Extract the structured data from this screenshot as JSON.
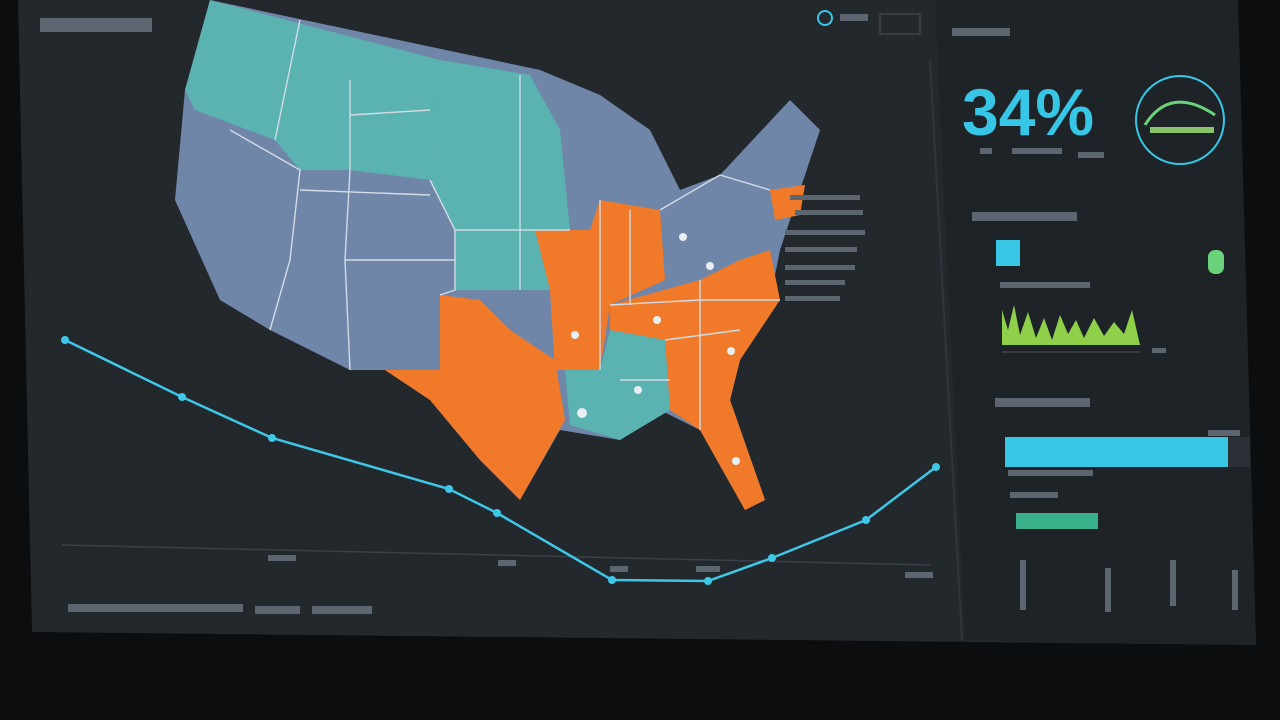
{
  "kpi": {
    "value": "34%"
  }
}
